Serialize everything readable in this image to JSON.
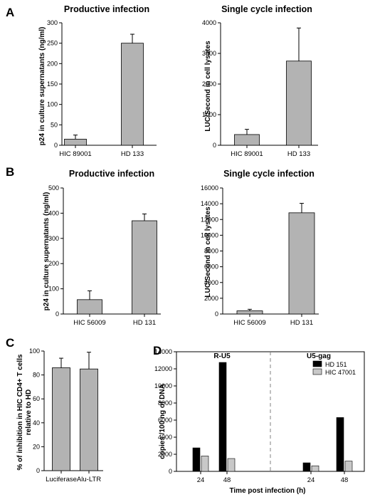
{
  "figure": {
    "panels": [
      {
        "letter": "A"
      },
      {
        "letter": "B"
      },
      {
        "letter": "C"
      },
      {
        "letter": "D"
      }
    ]
  },
  "colors": {
    "bar_gray": "#b3b3b3",
    "bar_black": "#000000",
    "bar_light": "#c8c8c8",
    "divider": "#808080"
  },
  "chart_data": [
    {
      "id": "A-left",
      "panel": "A",
      "type": "bar",
      "title": "Productive infection",
      "xlabel": "",
      "ylabel": "p24 in culture supernatants (ng/ml)",
      "categories": [
        "HIC 89001",
        "HD 133"
      ],
      "values": [
        15,
        250
      ],
      "errors": [
        10,
        22
      ],
      "ylim": [
        0,
        300
      ],
      "yticks": [
        0,
        50,
        100,
        150,
        200,
        250,
        300
      ],
      "grid": false,
      "color": "#b3b3b3"
    },
    {
      "id": "A-right",
      "panel": "A",
      "type": "bar",
      "title": "Single cycle infection",
      "xlabel": "",
      "ylabel": "LUC/Second in cell lysates",
      "categories": [
        "HIC 89001",
        "HD 133"
      ],
      "values": [
        350,
        2750
      ],
      "errors": [
        170,
        1080
      ],
      "ylim": [
        0,
        4000
      ],
      "yticks": [
        0,
        1000,
        2000,
        3000,
        4000
      ],
      "grid": false,
      "color": "#b3b3b3"
    },
    {
      "id": "B-left",
      "panel": "B",
      "type": "bar",
      "title": "Productive infection",
      "xlabel": "",
      "ylabel": "p24 in culture supernatants (ng/ml)",
      "categories": [
        "HIC 56009",
        "HD 131"
      ],
      "values": [
        57,
        370
      ],
      "errors": [
        35,
        27
      ],
      "ylim": [
        0,
        500
      ],
      "yticks": [
        0,
        100,
        200,
        300,
        400,
        500
      ],
      "grid": false,
      "color": "#b3b3b3"
    },
    {
      "id": "B-right",
      "panel": "B",
      "type": "bar",
      "title": "Single cycle infection",
      "xlabel": "",
      "ylabel": "LUC/Second in cell lysates",
      "categories": [
        "HIC 56009",
        "HD 131"
      ],
      "values": [
        400,
        12850
      ],
      "errors": [
        200,
        1200
      ],
      "ylim": [
        0,
        16000
      ],
      "yticks": [
        0,
        2000,
        4000,
        6000,
        8000,
        10000,
        12000,
        14000,
        16000
      ],
      "grid": false,
      "color": "#b3b3b3"
    },
    {
      "id": "C",
      "panel": "C",
      "type": "bar",
      "title": "",
      "xlabel": "",
      "ylabel_lines": [
        "% of inhibition in HIC CD4+ T cells",
        "relative to HD"
      ],
      "categories": [
        "Luciferase",
        "Alu-LTR"
      ],
      "values": [
        86,
        85
      ],
      "errors": [
        8,
        14
      ],
      "ylim": [
        0,
        100
      ],
      "yticks": [
        0,
        20,
        40,
        60,
        80,
        100
      ],
      "grid": false,
      "color": "#b3b3b3"
    },
    {
      "id": "D",
      "panel": "D",
      "type": "bar",
      "title": "",
      "xlabel": "Time post infection (h)",
      "ylabel": "copies /100 ng of DNA",
      "groups": [
        {
          "label": "R-U5",
          "categories": [
            "24",
            "48"
          ]
        },
        {
          "label": "U5-gag",
          "categories": [
            "24",
            "48"
          ]
        }
      ],
      "series": [
        {
          "name": "HD 151",
          "color": "#000000",
          "values": [
            2750,
            12750,
            1000,
            6300
          ]
        },
        {
          "name": "HIC 47001",
          "color": "#c8c8c8",
          "values": [
            1800,
            1500,
            650,
            1200
          ]
        }
      ],
      "ylim": [
        0,
        14000
      ],
      "yticks": [
        0,
        2000,
        4000,
        6000,
        8000,
        10000,
        12000,
        14000
      ],
      "legend_position": "top-right",
      "grid": false
    }
  ]
}
